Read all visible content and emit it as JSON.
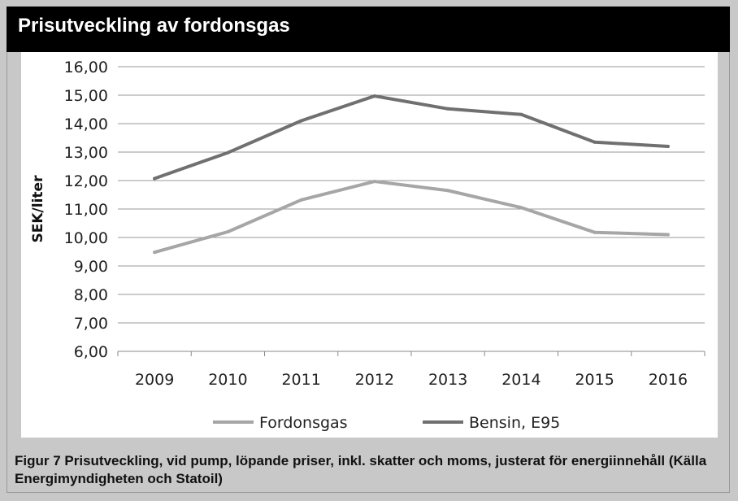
{
  "header": {
    "title": "Prisutveckling av fordonsgas"
  },
  "caption": {
    "text": "Figur 7 Prisutveckling, vid pump, löpande priser, inkl. skatter och moms, justerat för energiinnehåll (Källa Energimyndigheten och Statoil)"
  },
  "chart_data": {
    "type": "line",
    "title": "",
    "xlabel": "",
    "ylabel": "SEK/liter",
    "categories": [
      "2009",
      "2010",
      "2011",
      "2012",
      "2013",
      "2014",
      "2015",
      "2016"
    ],
    "ylim": [
      6,
      16
    ],
    "yticks": [
      "6,00",
      "7,00",
      "8,00",
      "9,00",
      "10,00",
      "11,00",
      "12,00",
      "13,00",
      "14,00",
      "15,00",
      "16,00"
    ],
    "grid": true,
    "legend": "bottom",
    "series": [
      {
        "name": "Fordonsgas",
        "color": "#a6a6a6",
        "values": [
          9.48,
          10.2,
          11.32,
          11.97,
          11.65,
          11.05,
          10.18,
          10.1
        ]
      },
      {
        "name": "Bensin, E95",
        "color": "#707070",
        "values": [
          12.07,
          12.98,
          14.1,
          14.97,
          14.52,
          14.32,
          13.35,
          13.2
        ]
      }
    ]
  }
}
